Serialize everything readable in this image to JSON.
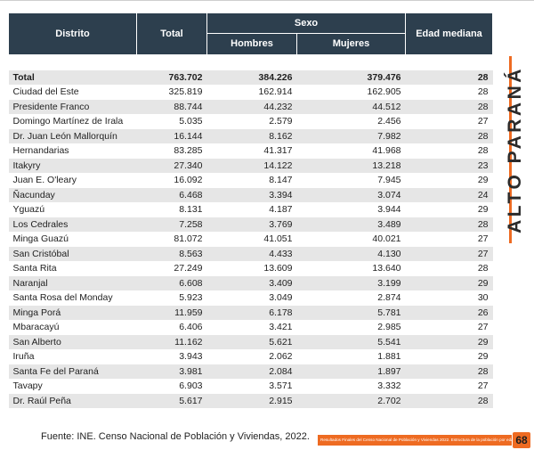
{
  "table": {
    "headers": {
      "distrito": "Distrito",
      "total": "Total",
      "sexo": "Sexo",
      "hombres": "Hombres",
      "mujeres": "Mujeres",
      "edad": "Edad mediana"
    },
    "rows": [
      {
        "d": "Total",
        "t": "763.702",
        "h": "384.226",
        "m": "379.476",
        "e": "28"
      },
      {
        "d": "Ciudad del Este",
        "t": "325.819",
        "h": "162.914",
        "m": "162.905",
        "e": "28"
      },
      {
        "d": "Presidente Franco",
        "t": "88.744",
        "h": "44.232",
        "m": "44.512",
        "e": "28"
      },
      {
        "d": "Domingo Martínez de Irala",
        "t": "5.035",
        "h": "2.579",
        "m": "2.456",
        "e": "27"
      },
      {
        "d": "Dr. Juan León Mallorquín",
        "t": "16.144",
        "h": "8.162",
        "m": "7.982",
        "e": "28"
      },
      {
        "d": "Hernandarias",
        "t": "83.285",
        "h": "41.317",
        "m": "41.968",
        "e": "28"
      },
      {
        "d": "Itakyry",
        "t": "27.340",
        "h": "14.122",
        "m": "13.218",
        "e": "23"
      },
      {
        "d": "Juan E. O'leary",
        "t": "16.092",
        "h": "8.147",
        "m": "7.945",
        "e": "29"
      },
      {
        "d": "Ñacunday",
        "t": "6.468",
        "h": "3.394",
        "m": "3.074",
        "e": "24"
      },
      {
        "d": "Yguazú",
        "t": "8.131",
        "h": "4.187",
        "m": "3.944",
        "e": "29"
      },
      {
        "d": "Los Cedrales",
        "t": "7.258",
        "h": "3.769",
        "m": "3.489",
        "e": "28"
      },
      {
        "d": "Minga Guazú",
        "t": "81.072",
        "h": "41.051",
        "m": "40.021",
        "e": "27"
      },
      {
        "d": "San Cristóbal",
        "t": "8.563",
        "h": "4.433",
        "m": "4.130",
        "e": "27"
      },
      {
        "d": "Santa Rita",
        "t": "27.249",
        "h": "13.609",
        "m": "13.640",
        "e": "28"
      },
      {
        "d": "Naranjal",
        "t": "6.608",
        "h": "3.409",
        "m": "3.199",
        "e": "29"
      },
      {
        "d": "Santa Rosa del Monday",
        "t": "5.923",
        "h": "3.049",
        "m": "2.874",
        "e": "30"
      },
      {
        "d": "Minga Porá",
        "t": "11.959",
        "h": "6.178",
        "m": "5.781",
        "e": "26"
      },
      {
        "d": "Mbaracayú",
        "t": "6.406",
        "h": "3.421",
        "m": "2.985",
        "e": "27"
      },
      {
        "d": "San Alberto",
        "t": "11.162",
        "h": "5.621",
        "m": "5.541",
        "e": "29"
      },
      {
        "d": "Iruña",
        "t": "3.943",
        "h": "2.062",
        "m": "1.881",
        "e": "29"
      },
      {
        "d": "Santa Fe del Paraná",
        "t": "3.981",
        "h": "2.084",
        "m": "1.897",
        "e": "28"
      },
      {
        "d": "Tavapy",
        "t": "6.903",
        "h": "3.571",
        "m": "3.332",
        "e": "27"
      },
      {
        "d": "Dr. Raúl Peña",
        "t": "5.617",
        "h": "2.915",
        "m": "2.702",
        "e": "28"
      }
    ]
  },
  "side_title": "ALTO PARANÁ",
  "source": "Fuente: INE. Censo Nacional de Población y Viviendas, 2022.",
  "footer": {
    "text": "Resultados Finales del Censo Nacional de Población y Viviendas 2022. Estructura de la población por edad y sexo",
    "page": "68"
  },
  "colors": {
    "header_bg": "#2d3f4e",
    "accent": "#ee6b22",
    "row_shade": "#e6e6e6"
  }
}
